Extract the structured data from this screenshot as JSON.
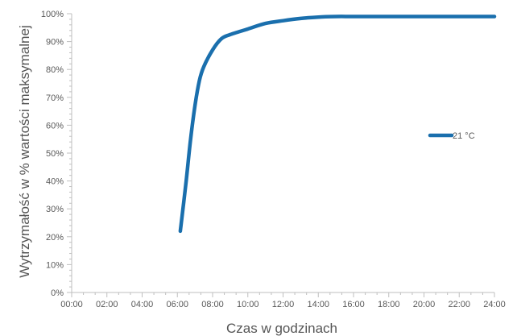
{
  "chart_data": {
    "type": "line",
    "title": "",
    "xlabel": "Czas w godzinach",
    "ylabel": "Wytrzymałość w % wartości maksymalnej",
    "x_ticks": [
      "00:00",
      "02:00",
      "04:00",
      "06:00",
      "08:00",
      "10:00",
      "12:00",
      "14:00",
      "16:00",
      "18:00",
      "20:00",
      "22:00",
      "24:00"
    ],
    "y_ticks": [
      "0%",
      "10%",
      "20%",
      "30%",
      "40%",
      "50%",
      "60%",
      "70%",
      "80%",
      "90%",
      "100%"
    ],
    "xlim": [
      "00:00",
      "24:00"
    ],
    "ylim": [
      0,
      100
    ],
    "grid": false,
    "legend_position": "right",
    "series": [
      {
        "name": "21 °C",
        "color": "#1a6fad",
        "x": [
          "06:10",
          "06:30",
          "06:45",
          "07:00",
          "07:15",
          "07:30",
          "08:00",
          "08:30",
          "09:00",
          "10:00",
          "11:00",
          "12:00",
          "13:00",
          "14:00",
          "15:00",
          "16:00",
          "18:00",
          "20:00",
          "22:00",
          "24:00"
        ],
        "y": [
          22,
          40,
          55,
          67,
          76,
          81,
          87,
          91,
          92.5,
          94.5,
          96.5,
          97.5,
          98.3,
          98.8,
          99,
          99,
          99,
          99,
          99,
          99
        ]
      }
    ]
  }
}
